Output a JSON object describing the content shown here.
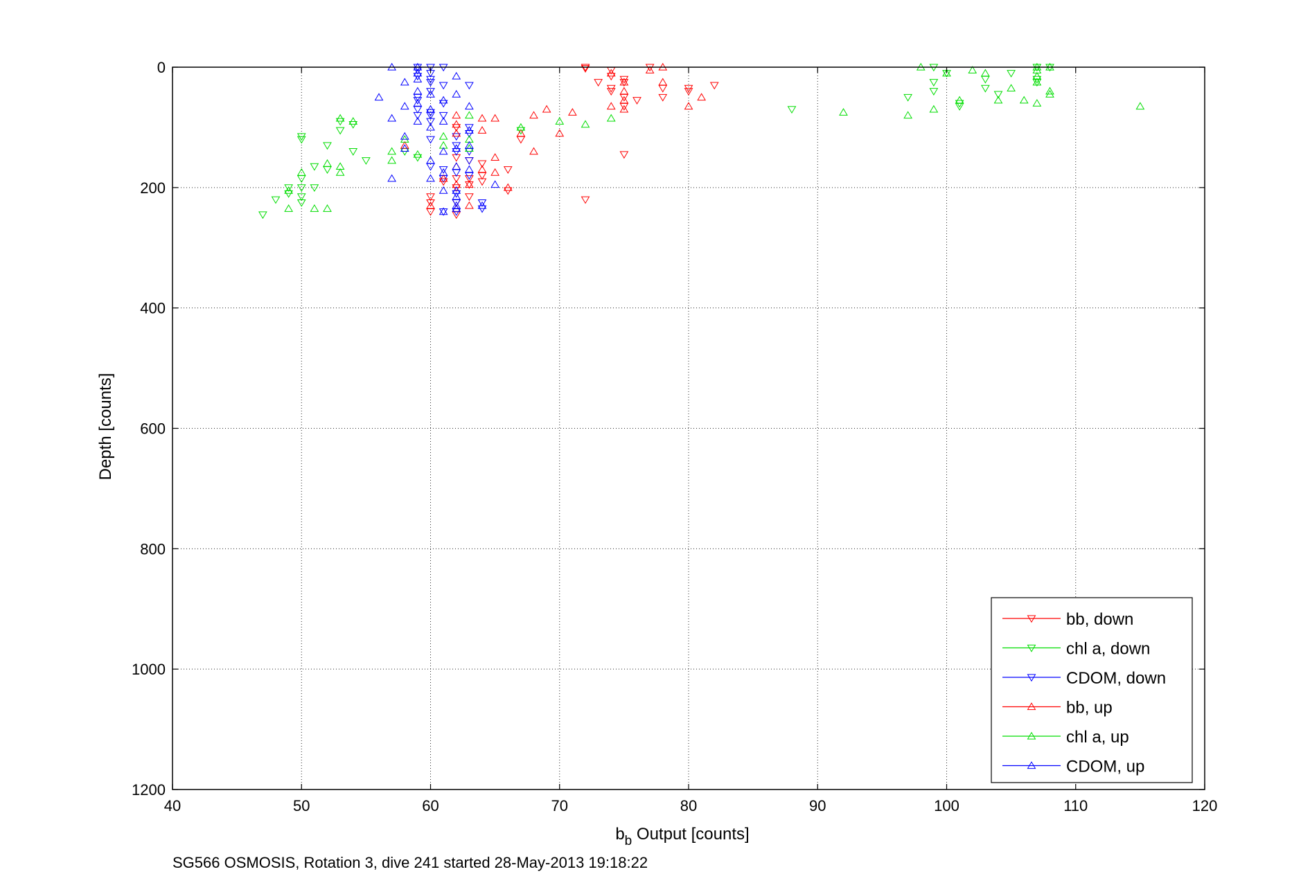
{
  "chart_data": {
    "type": "scatter",
    "caption": "SG566 OSMOSIS, Rotation 3, dive 241 started 28-May-2013 19:18:22",
    "xlabel": {
      "base": "b",
      "sub": "b",
      "rest": " Output [counts]"
    },
    "ylabel": "Depth [counts]",
    "xlim": [
      40,
      120
    ],
    "ylim": [
      0,
      1200
    ],
    "y_reversed": true,
    "grid": true,
    "legend_position": "bottom-right",
    "xticks": [
      "40",
      "50",
      "60",
      "70",
      "80",
      "90",
      "100",
      "110",
      "120"
    ],
    "yticks": [
      "0",
      "200",
      "400",
      "600",
      "800",
      "1000",
      "1200"
    ],
    "series": [
      {
        "name": "bb, down",
        "color": "#ff0000",
        "marker": "triangle-down",
        "points": [
          [
            72,
            0
          ],
          [
            72,
            2
          ],
          [
            73,
            25
          ],
          [
            74,
            5
          ],
          [
            74,
            15
          ],
          [
            74,
            35
          ],
          [
            74,
            40
          ],
          [
            75,
            20
          ],
          [
            75,
            25
          ],
          [
            75,
            50
          ],
          [
            75,
            65
          ],
          [
            76,
            55
          ],
          [
            77,
            0
          ],
          [
            78,
            35
          ],
          [
            78,
            50
          ],
          [
            80,
            35
          ],
          [
            80,
            40
          ],
          [
            82,
            30
          ],
          [
            75,
            145
          ],
          [
            72,
            220
          ],
          [
            67,
            120
          ],
          [
            66,
            205
          ],
          [
            66,
            170
          ],
          [
            64,
            160
          ],
          [
            64,
            180
          ],
          [
            63,
            155
          ],
          [
            63,
            185
          ],
          [
            63,
            215
          ],
          [
            62,
            185
          ],
          [
            62,
            200
          ],
          [
            62,
            245
          ],
          [
            62,
            100
          ],
          [
            62,
            150
          ],
          [
            61,
            190
          ],
          [
            60,
            215
          ],
          [
            60,
            225
          ],
          [
            60,
            240
          ],
          [
            63,
            195
          ],
          [
            62,
            225
          ],
          [
            64,
            190
          ]
        ]
      },
      {
        "name": "chl a, down",
        "color": "#00dd00",
        "marker": "triangle-down",
        "points": [
          [
            47,
            245
          ],
          [
            48,
            220
          ],
          [
            49,
            210
          ],
          [
            49,
            200
          ],
          [
            50,
            185
          ],
          [
            50,
            200
          ],
          [
            50,
            215
          ],
          [
            50,
            225
          ],
          [
            50,
            115
          ],
          [
            50,
            120
          ],
          [
            51,
            165
          ],
          [
            51,
            200
          ],
          [
            52,
            130
          ],
          [
            52,
            170
          ],
          [
            53,
            90
          ],
          [
            53,
            105
          ],
          [
            54,
            140
          ],
          [
            54,
            95
          ],
          [
            55,
            155
          ],
          [
            58,
            140
          ],
          [
            59,
            150
          ],
          [
            67,
            105
          ],
          [
            88,
            70
          ],
          [
            97,
            50
          ],
          [
            99,
            0
          ],
          [
            99,
            25
          ],
          [
            99,
            40
          ],
          [
            100,
            10
          ],
          [
            101,
            60
          ],
          [
            101,
            65
          ],
          [
            103,
            20
          ],
          [
            103,
            35
          ],
          [
            104,
            45
          ],
          [
            105,
            10
          ],
          [
            107,
            0
          ],
          [
            107,
            20
          ],
          [
            107,
            25
          ],
          [
            108,
            0
          ]
        ]
      },
      {
        "name": "CDOM, down",
        "color": "#0000ff",
        "marker": "triangle-down",
        "points": [
          [
            59,
            0
          ],
          [
            59,
            5
          ],
          [
            59,
            15
          ],
          [
            59,
            50
          ],
          [
            59,
            55
          ],
          [
            59,
            70
          ],
          [
            59,
            80
          ],
          [
            60,
            0
          ],
          [
            60,
            10
          ],
          [
            60,
            20
          ],
          [
            60,
            25
          ],
          [
            60,
            40
          ],
          [
            60,
            75
          ],
          [
            60,
            80
          ],
          [
            60,
            90
          ],
          [
            60,
            120
          ],
          [
            60,
            165
          ],
          [
            61,
            0
          ],
          [
            61,
            30
          ],
          [
            61,
            60
          ],
          [
            61,
            80
          ],
          [
            61,
            170
          ],
          [
            61,
            185
          ],
          [
            62,
            130
          ],
          [
            62,
            140
          ],
          [
            62,
            175
          ],
          [
            62,
            210
          ],
          [
            62,
            225
          ],
          [
            62,
            240
          ],
          [
            63,
            30
          ],
          [
            63,
            100
          ],
          [
            63,
            110
          ],
          [
            63,
            140
          ],
          [
            63,
            155
          ],
          [
            63,
            180
          ],
          [
            64,
            225
          ],
          [
            64,
            235
          ],
          [
            61,
            240
          ],
          [
            62,
            115
          ]
        ]
      },
      {
        "name": "bb, up",
        "color": "#ff0000",
        "marker": "triangle-up",
        "points": [
          [
            58,
            130
          ],
          [
            61,
            185
          ],
          [
            62,
            80
          ],
          [
            62,
            95
          ],
          [
            62,
            110
          ],
          [
            62,
            165
          ],
          [
            62,
            195
          ],
          [
            63,
            195
          ],
          [
            63,
            230
          ],
          [
            64,
            85
          ],
          [
            64,
            105
          ],
          [
            64,
            170
          ],
          [
            65,
            85
          ],
          [
            65,
            150
          ],
          [
            65,
            175
          ],
          [
            66,
            200
          ],
          [
            67,
            110
          ],
          [
            68,
            80
          ],
          [
            68,
            140
          ],
          [
            69,
            70
          ],
          [
            70,
            110
          ],
          [
            71,
            75
          ],
          [
            74,
            65
          ],
          [
            74,
            10
          ],
          [
            75,
            25
          ],
          [
            75,
            40
          ],
          [
            75,
            55
          ],
          [
            75,
            70
          ],
          [
            77,
            5
          ],
          [
            78,
            0
          ],
          [
            78,
            25
          ],
          [
            80,
            65
          ],
          [
            81,
            50
          ],
          [
            60,
            230
          ],
          [
            62,
            235
          ]
        ]
      },
      {
        "name": "chl a, up",
        "color": "#00dd00",
        "marker": "triangle-up",
        "points": [
          [
            49,
            235
          ],
          [
            49,
            205
          ],
          [
            50,
            175
          ],
          [
            51,
            235
          ],
          [
            52,
            235
          ],
          [
            52,
            160
          ],
          [
            53,
            175
          ],
          [
            53,
            165
          ],
          [
            53,
            85
          ],
          [
            54,
            90
          ],
          [
            57,
            140
          ],
          [
            57,
            155
          ],
          [
            58,
            120
          ],
          [
            59,
            145
          ],
          [
            61,
            115
          ],
          [
            61,
            130
          ],
          [
            63,
            80
          ],
          [
            63,
            120
          ],
          [
            63,
            135
          ],
          [
            67,
            100
          ],
          [
            70,
            90
          ],
          [
            72,
            95
          ],
          [
            74,
            85
          ],
          [
            92,
            75
          ],
          [
            97,
            80
          ],
          [
            98,
            0
          ],
          [
            99,
            70
          ],
          [
            100,
            10
          ],
          [
            101,
            55
          ],
          [
            102,
            5
          ],
          [
            103,
            10
          ],
          [
            104,
            55
          ],
          [
            105,
            35
          ],
          [
            106,
            55
          ],
          [
            107,
            60
          ],
          [
            107,
            0
          ],
          [
            107,
            5
          ],
          [
            107,
            15
          ],
          [
            107,
            25
          ],
          [
            108,
            0
          ],
          [
            108,
            40
          ],
          [
            108,
            45
          ],
          [
            115,
            65
          ]
        ]
      },
      {
        "name": "CDOM, up",
        "color": "#0000ff",
        "marker": "triangle-up",
        "points": [
          [
            56,
            50
          ],
          [
            57,
            0
          ],
          [
            57,
            85
          ],
          [
            57,
            185
          ],
          [
            58,
            25
          ],
          [
            58,
            65
          ],
          [
            58,
            115
          ],
          [
            58,
            135
          ],
          [
            59,
            0
          ],
          [
            59,
            20
          ],
          [
            59,
            40
          ],
          [
            59,
            60
          ],
          [
            59,
            90
          ],
          [
            60,
            45
          ],
          [
            60,
            70
          ],
          [
            60,
            100
          ],
          [
            60,
            155
          ],
          [
            61,
            55
          ],
          [
            61,
            90
          ],
          [
            61,
            140
          ],
          [
            61,
            175
          ],
          [
            61,
            205
          ],
          [
            62,
            15
          ],
          [
            62,
            45
          ],
          [
            62,
            135
          ],
          [
            62,
            165
          ],
          [
            62,
            205
          ],
          [
            62,
            215
          ],
          [
            63,
            65
          ],
          [
            63,
            105
          ],
          [
            63,
            130
          ],
          [
            63,
            170
          ],
          [
            64,
            230
          ],
          [
            65,
            195
          ],
          [
            60,
            185
          ],
          [
            61,
            240
          ],
          [
            62,
            235
          ],
          [
            59,
            10
          ],
          [
            62,
            230
          ]
        ]
      }
    ]
  }
}
